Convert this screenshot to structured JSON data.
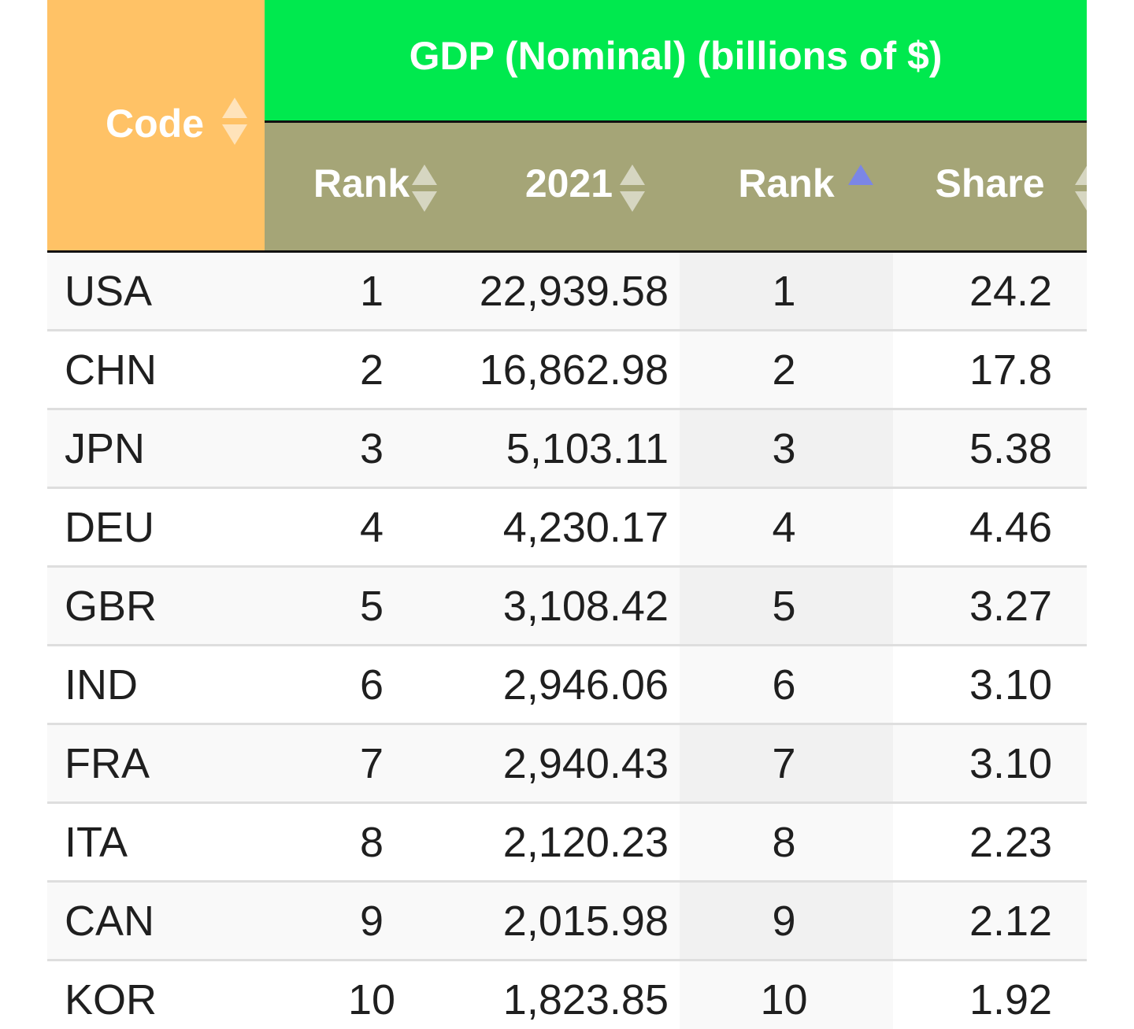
{
  "table": {
    "headers": {
      "code": "Code",
      "group": "GDP (Nominal) (billions of $)",
      "rank1": "Rank",
      "year": "2021",
      "rank2": "Rank",
      "share": "Share"
    },
    "sort": {
      "column": "rank2",
      "direction": "ascending"
    },
    "colors": {
      "code_header": "#ffc266",
      "group_header": "#00e94e",
      "sub_header": "#a5a577",
      "sort_active": "#7b86e6"
    },
    "rows": [
      {
        "code": "USA",
        "rank1": "1",
        "gdp": "22,939.58",
        "rank2": "1",
        "share": "24.2"
      },
      {
        "code": "CHN",
        "rank1": "2",
        "gdp": "16,862.98",
        "rank2": "2",
        "share": "17.8"
      },
      {
        "code": "JPN",
        "rank1": "3",
        "gdp": "5,103.11",
        "rank2": "3",
        "share": "5.38"
      },
      {
        "code": "DEU",
        "rank1": "4",
        "gdp": "4,230.17",
        "rank2": "4",
        "share": "4.46"
      },
      {
        "code": "GBR",
        "rank1": "5",
        "gdp": "3,108.42",
        "rank2": "5",
        "share": "3.27"
      },
      {
        "code": "IND",
        "rank1": "6",
        "gdp": "2,946.06",
        "rank2": "6",
        "share": "3.10"
      },
      {
        "code": "FRA",
        "rank1": "7",
        "gdp": "2,940.43",
        "rank2": "7",
        "share": "3.10"
      },
      {
        "code": "ITA",
        "rank1": "8",
        "gdp": "2,120.23",
        "rank2": "8",
        "share": "2.23"
      },
      {
        "code": "CAN",
        "rank1": "9",
        "gdp": "2,015.98",
        "rank2": "9",
        "share": "2.12"
      },
      {
        "code": "KOR",
        "rank1": "10",
        "gdp": "1,823.85",
        "rank2": "10",
        "share": "1.92"
      }
    ]
  }
}
